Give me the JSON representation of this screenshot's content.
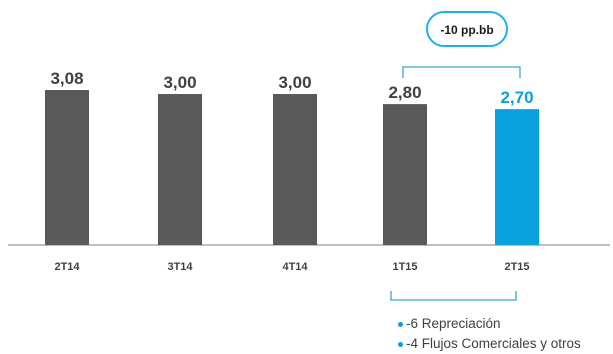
{
  "chart_data": {
    "type": "bar",
    "categories": [
      "2T14",
      "3T14",
      "4T14",
      "1T15",
      "2T15"
    ],
    "values": [
      3.08,
      3.0,
      3.0,
      2.8,
      2.7
    ],
    "value_labels": [
      "3,08",
      "3,00",
      "3,00",
      "2,80",
      "2,70"
    ],
    "title": "",
    "xlabel": "",
    "ylabel": "",
    "ylim": [
      0,
      3.08
    ],
    "grid": false,
    "highlight_index": 4,
    "annotation": {
      "text": "-10 pp.bb",
      "from_category": "1T15",
      "to_category": "2T15"
    },
    "breakdown": [
      "-6 Repreciación",
      "-4 Flujos Comerciales y otros"
    ]
  },
  "colors": {
    "bar": "#595959",
    "highlight": "#0aa0dd",
    "label": "#404040",
    "axis": "#7f7f7f",
    "bracket": "#3aa7cf",
    "callout_border": "#1fb0e8"
  }
}
